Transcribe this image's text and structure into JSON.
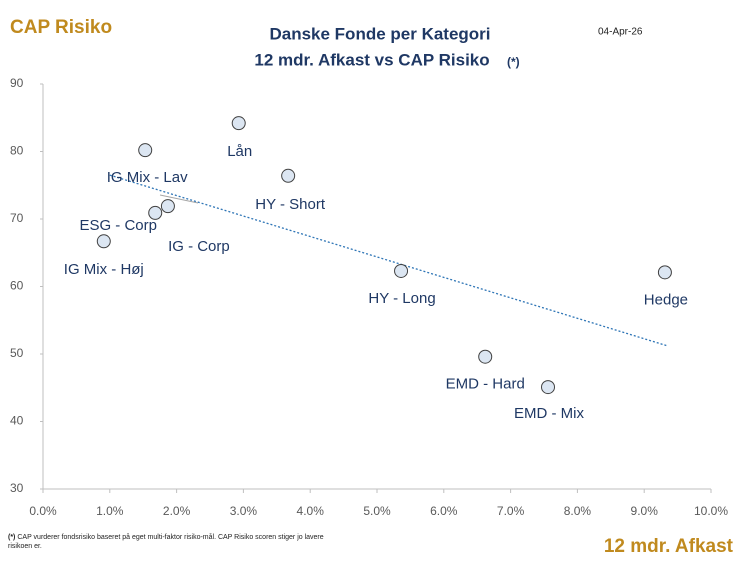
{
  "chart_data": {
    "type": "scatter",
    "corner_label": "CAP Risiko",
    "title": "Danske Fonde per Kategori",
    "subtitle": "12 mdr. Afkast vs CAP Risiko",
    "subtitle_marker": "(*)",
    "date": "04-Apr-26",
    "x_label": "12 mdr. Afkast",
    "footnote_marker": "(*)",
    "footnote": "CAP vurderer fondsrisiko baseret på eget multi-faktor risiko-mål. CAP Risiko scoren stiger jo lavere risikoen er.",
    "series": [
      {
        "color": "#dce6f2",
        "labels": [
          "IG Mix - Lav",
          "Lån",
          "HY - Short",
          "IG - Corp",
          "ESG - Corp",
          "IG Mix - Høj",
          "HY - Long",
          "Hedge",
          "EMD - Hard",
          "EMD - Mix"
        ],
        "x": [
          1.53,
          2.93,
          3.67,
          1.87,
          1.68,
          0.91,
          5.36,
          9.31,
          6.62,
          7.56
        ],
        "values": [
          80.2,
          84.2,
          76.4,
          71.9,
          70.9,
          66.7,
          62.3,
          62.1,
          49.6,
          45.1
        ]
      }
    ],
    "trendline": {
      "color": "#2e75b6",
      "x": [
        1.0,
        9.35
      ],
      "values": [
        76.5,
        51.2
      ]
    },
    "xlim": [
      0,
      10
    ],
    "xticks": [
      {
        "value": 0,
        "label": "0.0%"
      },
      {
        "value": 1,
        "label": "1.0%"
      },
      {
        "value": 2,
        "label": "2.0%"
      },
      {
        "value": 3,
        "label": "3.0%"
      },
      {
        "value": 4,
        "label": "4.0%"
      },
      {
        "value": 5,
        "label": "5.0%"
      },
      {
        "value": 6,
        "label": "6.0%"
      },
      {
        "value": 7,
        "label": "7.0%"
      },
      {
        "value": 8,
        "label": "8.0%"
      },
      {
        "value": 9,
        "label": "9.0%"
      },
      {
        "value": 10,
        "label": "10.0%"
      }
    ],
    "ylim": [
      30,
      90
    ],
    "yticks": [
      30,
      40,
      50,
      60,
      70,
      80,
      90
    ],
    "grid": false
  }
}
